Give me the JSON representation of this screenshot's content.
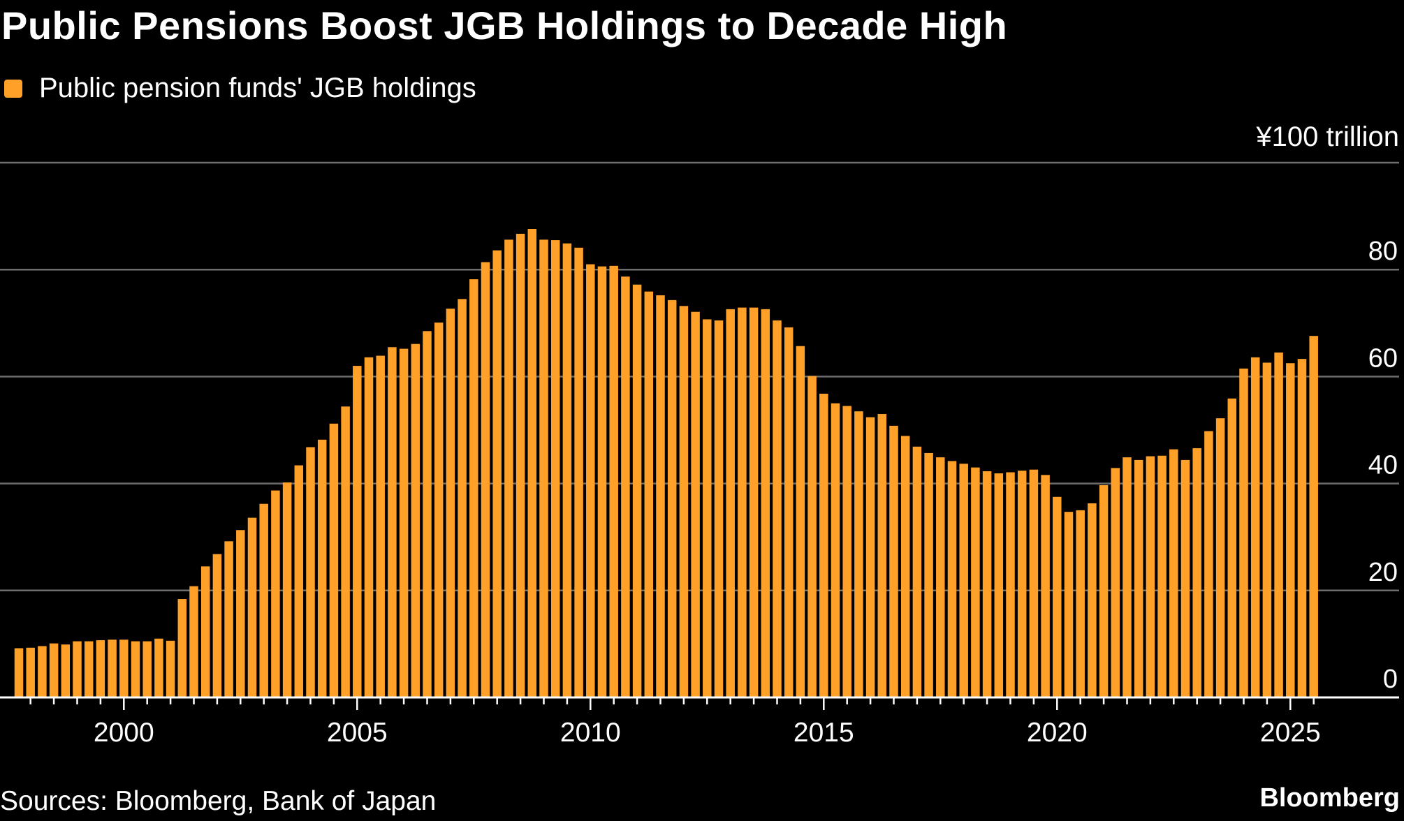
{
  "title": "Public Pensions Boost JGB Holdings to Decade High",
  "legend": {
    "label": "Public pension funds' JGB holdings",
    "color": "#FFA028"
  },
  "unit_label": "¥100 trillion",
  "source": "Sources: Bloomberg, Bank of Japan",
  "brand": "Bloomberg",
  "chart_data": {
    "type": "bar",
    "title": "Public Pensions Boost JGB Holdings to Decade High",
    "xlabel": "",
    "ylabel": "¥100 trillion",
    "ylim": [
      0,
      100
    ],
    "yticks": [
      0,
      20,
      40,
      60,
      80
    ],
    "xticks": [
      "2000",
      "2005",
      "2010",
      "2015",
      "2020",
      "2025"
    ],
    "grid": true,
    "legend_position": "top-left",
    "frequency": "quarterly",
    "categories": [
      "1997Q4",
      "1998Q1",
      "1998Q2",
      "1998Q3",
      "1998Q4",
      "1999Q1",
      "1999Q2",
      "1999Q3",
      "1999Q4",
      "2000Q1",
      "2000Q2",
      "2000Q3",
      "2000Q4",
      "2001Q1",
      "2001Q2",
      "2001Q3",
      "2001Q4",
      "2002Q1",
      "2002Q2",
      "2002Q3",
      "2002Q4",
      "2003Q1",
      "2003Q2",
      "2003Q3",
      "2003Q4",
      "2004Q1",
      "2004Q2",
      "2004Q3",
      "2004Q4",
      "2005Q1",
      "2005Q2",
      "2005Q3",
      "2005Q4",
      "2006Q1",
      "2006Q2",
      "2006Q3",
      "2006Q4",
      "2007Q1",
      "2007Q2",
      "2007Q3",
      "2007Q4",
      "2008Q1",
      "2008Q2",
      "2008Q3",
      "2008Q4",
      "2009Q1",
      "2009Q2",
      "2009Q3",
      "2009Q4",
      "2010Q1",
      "2010Q2",
      "2010Q3",
      "2010Q4",
      "2011Q1",
      "2011Q2",
      "2011Q3",
      "2011Q4",
      "2012Q1",
      "2012Q2",
      "2012Q3",
      "2012Q4",
      "2013Q1",
      "2013Q2",
      "2013Q3",
      "2013Q4",
      "2014Q1",
      "2014Q2",
      "2014Q3",
      "2014Q4",
      "2015Q1",
      "2015Q2",
      "2015Q3",
      "2015Q4",
      "2016Q1",
      "2016Q2",
      "2016Q3",
      "2016Q4",
      "2017Q1",
      "2017Q2",
      "2017Q3",
      "2017Q4",
      "2018Q1",
      "2018Q2",
      "2018Q3",
      "2018Q4",
      "2019Q1",
      "2019Q2",
      "2019Q3",
      "2019Q4",
      "2020Q1",
      "2020Q2",
      "2020Q3",
      "2020Q4",
      "2021Q1",
      "2021Q2",
      "2021Q3",
      "2021Q4",
      "2022Q1",
      "2022Q2",
      "2022Q3",
      "2022Q4",
      "2023Q1",
      "2023Q2",
      "2023Q3",
      "2023Q4",
      "2024Q1",
      "2024Q2",
      "2024Q3",
      "2024Q4",
      "2025Q1",
      "2025Q2",
      "2025Q3"
    ],
    "series": [
      {
        "name": "Public pension funds' JGB holdings",
        "color": "#FFA028",
        "values": [
          9.2,
          9.3,
          9.6,
          10.1,
          9.9,
          10.5,
          10.5,
          10.7,
          10.8,
          10.8,
          10.5,
          10.5,
          11.0,
          10.6,
          18.4,
          20.8,
          24.5,
          26.8,
          29.2,
          31.3,
          33.6,
          36.2,
          38.7,
          40.2,
          43.4,
          46.8,
          48.2,
          51.2,
          54.4,
          62.0,
          63.6,
          63.9,
          65.5,
          65.2,
          66.1,
          68.5,
          70.1,
          72.7,
          74.5,
          78.2,
          81.4,
          83.6,
          85.6,
          86.7,
          87.6,
          85.6,
          85.5,
          84.9,
          84.1,
          81.0,
          80.6,
          80.7,
          78.7,
          77.2,
          75.9,
          75.2,
          74.3,
          73.2,
          72.1,
          70.7,
          70.5,
          72.6,
          72.9,
          72.9,
          72.6,
          70.5,
          69.2,
          65.7,
          60.1,
          56.8,
          55.0,
          54.5,
          53.5,
          52.4,
          53.0,
          50.8,
          48.9,
          46.9,
          45.7,
          44.9,
          44.2,
          43.7,
          43.0,
          42.3,
          41.9,
          42.1,
          42.4,
          42.6,
          41.6,
          37.5,
          34.7,
          35.0,
          36.3,
          39.7,
          42.9,
          44.9,
          44.4,
          45.1,
          45.2,
          46.4,
          44.4,
          46.6,
          49.8,
          52.2,
          55.9,
          61.5,
          63.6,
          62.6,
          64.5,
          62.5,
          63.3,
          67.6
        ]
      }
    ]
  }
}
